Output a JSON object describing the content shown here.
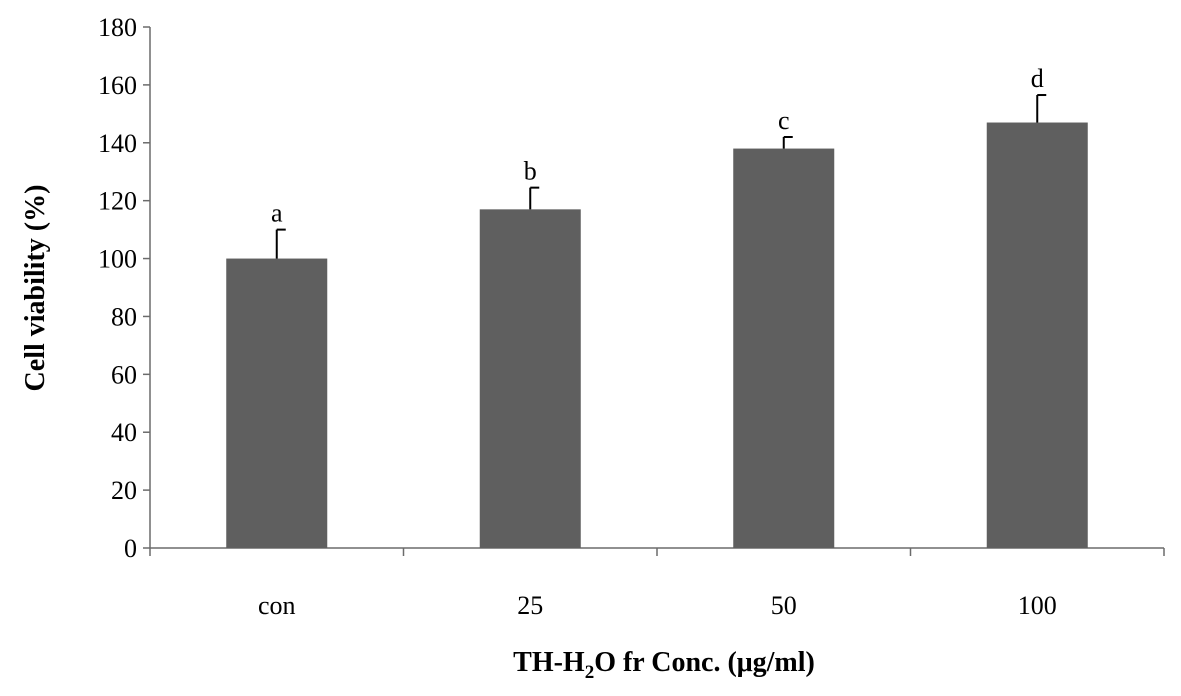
{
  "chart_data": {
    "type": "bar",
    "title": "",
    "categories": [
      "con",
      "25",
      "50",
      "100"
    ],
    "series": [
      {
        "values": [
          100,
          117,
          138,
          147
        ],
        "error": [
          10,
          7.5,
          4,
          9.5
        ],
        "significance": [
          "a",
          "b",
          "c",
          "d"
        ],
        "color": "#5f5f5f"
      }
    ],
    "ylabel": "Cell viability (%)",
    "xlabel": {
      "prefix": "TH-H",
      "subscript": "2",
      "suffix": "O fr Conc. (μg/ml)"
    },
    "ylim": [
      0,
      180
    ],
    "yticks": [
      "0",
      "20",
      "40",
      "60",
      "80",
      "100",
      "120",
      "140",
      "160",
      "180"
    ],
    "grid": false,
    "legend": "none"
  }
}
